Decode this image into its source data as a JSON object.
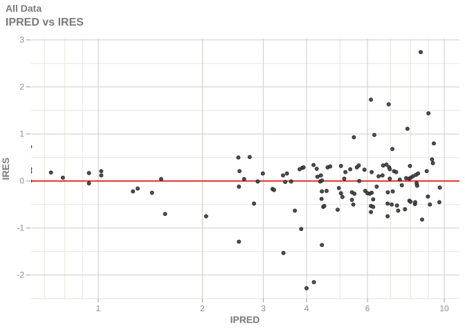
{
  "header": {
    "title": "All Data",
    "subtitle": "IPRED vs IRES"
  },
  "chart_data": {
    "type": "scatter",
    "title": "All Data",
    "subtitle": "IPRED vs IRES",
    "xlabel": "IPRED",
    "ylabel": "IRES",
    "x_scale": "log10",
    "grid": true,
    "legend": false,
    "x_ticks": [
      1,
      2,
      3,
      4,
      6,
      10
    ],
    "x_minor_gridlines": [
      0.7,
      0.8,
      0.9,
      5,
      7,
      8,
      9
    ],
    "y_ticks": [
      3,
      2,
      1,
      0,
      -1,
      -2
    ],
    "y_minor_gridlines": [
      2.5,
      1.5,
      0.5,
      -0.5,
      -1.5,
      -2.5
    ],
    "xlim": [
      0.63,
      11.1
    ],
    "ylim": [
      -2.5,
      3.03
    ],
    "reference_line": {
      "y": 0
    },
    "colors": {
      "point": "#454545",
      "point_stroke": "#1c1c1c",
      "reference_line": "#E60000",
      "grid_major": "#cdccc4",
      "grid_minor": "#e6e5dd",
      "tick": "#9a9a9a",
      "tick_label": "#8c8c8c",
      "title": "#7a7a7a",
      "background": "#ffffff"
    },
    "points": [
      [
        0.635,
        0.73
      ],
      [
        0.635,
        0.26
      ],
      [
        0.635,
        0.19
      ],
      [
        0.635,
        0.0
      ],
      [
        0.73,
        0.18
      ],
      [
        0.79,
        0.07
      ],
      [
        0.94,
        0.17
      ],
      [
        0.94,
        -0.05
      ],
      [
        1.02,
        0.21
      ],
      [
        1.02,
        0.12
      ],
      [
        1.26,
        -0.22
      ],
      [
        1.3,
        -0.16
      ],
      [
        1.43,
        -0.25
      ],
      [
        1.52,
        0.04
      ],
      [
        1.56,
        -0.7
      ],
      [
        2.05,
        -0.75
      ],
      [
        2.54,
        0.5
      ],
      [
        2.56,
        0.21
      ],
      [
        2.64,
        0.04
      ],
      [
        2.55,
        -0.12
      ],
      [
        2.55,
        -1.29
      ],
      [
        2.74,
        0.51
      ],
      [
        2.82,
        -0.48
      ],
      [
        2.89,
        -0.01
      ],
      [
        2.99,
        0.16
      ],
      [
        3.19,
        -0.17
      ],
      [
        3.22,
        -0.19
      ],
      [
        3.42,
        0.12
      ],
      [
        3.47,
        -0.02
      ],
      [
        3.51,
        0.16
      ],
      [
        3.61,
        -0.01
      ],
      [
        3.43,
        -1.53
      ],
      [
        3.7,
        -0.63
      ],
      [
        3.82,
        0.25
      ],
      [
        3.86,
        -1.02
      ],
      [
        3.89,
        0.28
      ],
      [
        3.92,
        0.29
      ],
      [
        4.0,
        -2.28
      ],
      [
        4.19,
        0.34
      ],
      [
        4.2,
        -2.15
      ],
      [
        4.28,
        0.26
      ],
      [
        4.3,
        0.09
      ],
      [
        4.38,
        -0.01
      ],
      [
        4.4,
        0.12
      ],
      [
        4.42,
        -0.38
      ],
      [
        4.43,
        0.01
      ],
      [
        4.43,
        -0.22
      ],
      [
        4.43,
        -1.36
      ],
      [
        4.47,
        -0.55
      ],
      [
        4.5,
        -0.53
      ],
      [
        4.57,
        -0.21
      ],
      [
        4.6,
        0.29
      ],
      [
        4.68,
        0.31
      ],
      [
        4.92,
        -0.61
      ],
      [
        4.96,
        -0.15
      ],
      [
        5.03,
        0.32
      ],
      [
        5.03,
        -0.26
      ],
      [
        5.08,
        -0.34
      ],
      [
        5.14,
        0.05
      ],
      [
        5.18,
        0.19
      ],
      [
        5.35,
        0.25
      ],
      [
        5.41,
        -0.24
      ],
      [
        5.41,
        -0.4
      ],
      [
        5.46,
        -0.5
      ],
      [
        5.48,
        0.93
      ],
      [
        5.5,
        -0.27
      ],
      [
        5.59,
        0.29
      ],
      [
        5.66,
        0.33
      ],
      [
        5.68,
        0.0
      ],
      [
        5.88,
        0.24
      ],
      [
        5.91,
        -0.21
      ],
      [
        6.0,
        -0.26
      ],
      [
        6.09,
        -0.27
      ],
      [
        6.14,
        1.73
      ],
      [
        6.14,
        -0.53
      ],
      [
        6.14,
        -0.66
      ],
      [
        6.17,
        0.19
      ],
      [
        6.17,
        -0.25
      ],
      [
        6.23,
        -0.39
      ],
      [
        6.23,
        -0.55
      ],
      [
        6.28,
        0.98
      ],
      [
        6.38,
        -0.12
      ],
      [
        6.46,
        0.1
      ],
      [
        6.63,
        0.12
      ],
      [
        6.66,
        0.33
      ],
      [
        6.81,
        0.35
      ],
      [
        6.86,
        -0.48
      ],
      [
        6.86,
        -0.75
      ],
      [
        6.87,
        -0.24
      ],
      [
        6.91,
        1.63
      ],
      [
        6.93,
        0.29
      ],
      [
        6.96,
        0.25
      ],
      [
        6.96,
        0.05
      ],
      [
        7.05,
        -0.5
      ],
      [
        7.08,
        0.68
      ],
      [
        7.1,
        -0.22
      ],
      [
        7.16,
        0.21
      ],
      [
        7.26,
        0.19
      ],
      [
        7.3,
        -0.52
      ],
      [
        7.36,
        -0.63
      ],
      [
        7.44,
        0.03
      ],
      [
        7.54,
        -0.09
      ],
      [
        7.7,
        -0.6
      ],
      [
        7.76,
        0.06
      ],
      [
        7.83,
        1.11
      ],
      [
        7.92,
        0.05
      ],
      [
        7.93,
        -0.42
      ],
      [
        7.96,
        0.32
      ],
      [
        7.99,
        -0.44
      ],
      [
        8.0,
        0.07
      ],
      [
        8.12,
        0.1
      ],
      [
        8.23,
        -0.49
      ],
      [
        8.24,
        -0.45
      ],
      [
        8.28,
        0.13
      ],
      [
        8.32,
        -0.05
      ],
      [
        8.35,
        -0.1
      ],
      [
        8.4,
        0.16
      ],
      [
        8.55,
        2.74
      ],
      [
        8.63,
        -0.82
      ],
      [
        8.9,
        0.21
      ],
      [
        8.97,
        -0.33
      ],
      [
        9.0,
        1.44
      ],
      [
        9.09,
        -0.5
      ],
      [
        9.22,
        0.46
      ],
      [
        9.27,
        0.38
      ],
      [
        9.33,
        0.8
      ],
      [
        9.68,
        -0.45
      ],
      [
        9.71,
        -0.14
      ]
    ]
  }
}
